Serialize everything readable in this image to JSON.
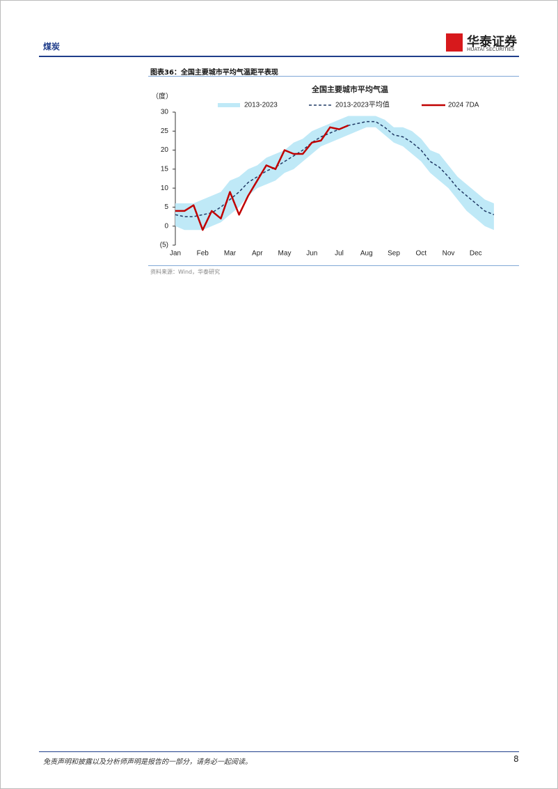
{
  "header": {
    "section": "煤炭",
    "logo": "华泰证券",
    "logo_en": "HUATAI SECURITIES"
  },
  "figure": {
    "title": "图表36：全国主要城市平均气温距平表现",
    "source": "资料来源：Wind，华泰研究"
  },
  "chart_data": {
    "type": "line",
    "title": "全国主要城市平均气温",
    "y_label": "（度）",
    "categories": [
      "Jan",
      null,
      null,
      "Feb",
      null,
      null,
      "Mar",
      null,
      null,
      "Apr",
      null,
      null,
      "May",
      null,
      null,
      "Jun",
      null,
      null,
      "Jul",
      null,
      null,
      "Aug",
      null,
      null,
      "Sep",
      null,
      null,
      "Oct",
      null,
      null,
      "Nov",
      null,
      null,
      "Dec",
      null,
      null
    ],
    "ylim": [
      -5,
      30
    ],
    "yticks": [
      {
        "value": -5,
        "label": "(5)"
      },
      0,
      5,
      10,
      15,
      20,
      25,
      30
    ],
    "series": [
      {
        "name": "2013-2023",
        "color": "#bfe9f7",
        "style": "band",
        "low": [
          0,
          -1,
          -1,
          -1,
          0,
          1,
          3,
          5,
          8,
          10,
          11,
          12,
          14,
          15,
          17,
          19,
          21,
          22,
          23,
          24,
          25,
          26,
          26,
          24,
          22,
          21,
          19,
          17,
          14,
          12,
          10,
          7,
          4,
          2,
          0,
          -1
        ],
        "high": [
          6,
          6,
          6,
          7,
          8,
          9,
          12,
          13,
          15,
          16,
          18,
          19,
          20,
          22,
          23,
          25,
          26,
          27,
          28,
          29,
          29,
          29,
          29,
          28,
          26,
          26,
          25,
          23,
          20,
          19,
          16,
          13,
          11,
          9,
          7,
          6
        ]
      },
      {
        "name": "2013-2023平均值",
        "color": "#1f3864",
        "style": "dash",
        "values": [
          3,
          2.5,
          2.5,
          3,
          3.5,
          5,
          7,
          9,
          11.5,
          13,
          14.5,
          15.5,
          17,
          18.5,
          20,
          22,
          23.5,
          24.5,
          25.5,
          26.5,
          27,
          27.5,
          27.5,
          26,
          24,
          23.5,
          22,
          20,
          17,
          15.5,
          13,
          10,
          8,
          6,
          4,
          3
        ]
      },
      {
        "name": "2024 7DA",
        "color": "#c00000",
        "style": "solid",
        "values": [
          4,
          4,
          5.5,
          -1,
          4,
          2,
          9,
          3,
          8,
          12,
          16,
          15,
          20,
          19,
          19,
          22,
          22.5,
          26,
          25.5,
          26.5,
          null,
          null,
          null,
          null,
          null,
          null,
          null,
          null,
          null,
          null,
          null,
          null,
          null,
          null,
          null,
          null
        ]
      }
    ]
  },
  "footer": {
    "disclaimer": "免责声明和披露以及分析师声明是报告的一部分，请务必一起阅读。",
    "page": "8"
  }
}
